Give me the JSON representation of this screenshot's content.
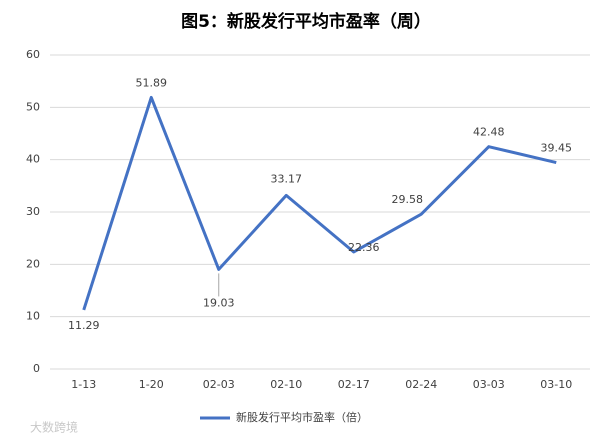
{
  "chart_data": {
    "type": "line",
    "title": "图5：新股发行平均市盈率（周）",
    "categories": [
      "1-13",
      "1-20",
      "02-03",
      "02-10",
      "02-17",
      "02-24",
      "03-03",
      "03-10"
    ],
    "series": [
      {
        "name": "新股发行平均市盈率（倍）",
        "color": "#4472c4",
        "values": [
          11.29,
          51.89,
          19.03,
          33.17,
          22.36,
          29.58,
          42.48,
          39.45
        ]
      }
    ],
    "ylim": [
      0,
      60
    ],
    "yticks": [
      0,
      10,
      20,
      30,
      40,
      50,
      60
    ],
    "grid": true,
    "legend": "bottom",
    "watermark": "大数跨境"
  }
}
